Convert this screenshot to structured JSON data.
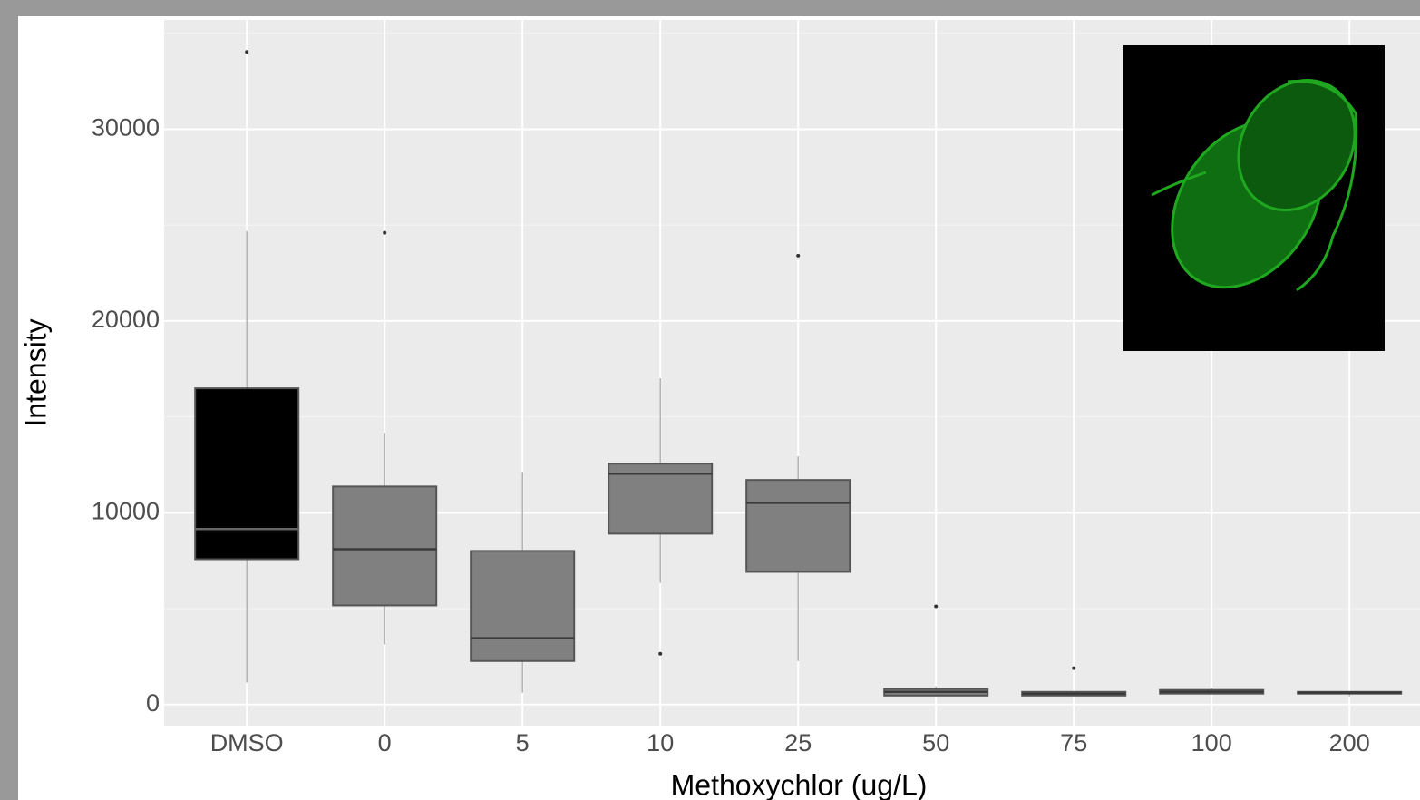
{
  "chart_data": {
    "type": "box",
    "x_label": "Methoxychlor (ug/L)",
    "y_label": "Intensity",
    "categories": [
      "DMSO",
      "0",
      "5",
      "10",
      "25",
      "50",
      "75",
      "100",
      "200"
    ],
    "box_colors": [
      "#000000",
      "#808080",
      "#808080",
      "#808080",
      "#808080",
      "#808080",
      "#808080",
      "#808080",
      "#808080"
    ],
    "boxes": [
      {
        "low": 1140,
        "q1": 7580,
        "median": 9150,
        "q3": 16490,
        "high": 24690,
        "outliers": [
          34030
        ]
      },
      {
        "low": 3130,
        "q1": 5170,
        "median": 8100,
        "q3": 11370,
        "high": 14170,
        "outliers": [
          24600
        ]
      },
      {
        "low": 620,
        "q1": 2270,
        "median": 3460,
        "q3": 8010,
        "high": 12130,
        "outliers": []
      },
      {
        "low": 6350,
        "q1": 8910,
        "median": 12040,
        "q3": 12560,
        "high": 17010,
        "outliers": [
          2650
        ]
      },
      {
        "low": 2270,
        "q1": 6920,
        "median": 10520,
        "q3": 11710,
        "high": 12940,
        "outliers": [
          23410
        ]
      },
      {
        "low": 470,
        "q1": 470,
        "median": 660,
        "q3": 810,
        "high": 950,
        "outliers": [
          5120
        ]
      },
      {
        "low": 470,
        "q1": 470,
        "median": 570,
        "q3": 660,
        "high": 660,
        "outliers": [
          1900
        ]
      },
      {
        "low": 570,
        "q1": 570,
        "median": 660,
        "q3": 760,
        "high": 850,
        "outliers": []
      },
      {
        "low": 430,
        "q1": 570,
        "median": 620,
        "q3": 660,
        "high": 660,
        "outliers": []
      }
    ],
    "ylim": [
      -1100,
      35700
    ],
    "yticks": [
      0,
      10000,
      20000,
      30000
    ],
    "minor_yticks": [
      5000,
      15000,
      25000,
      35000
    ],
    "grid": true
  }
}
